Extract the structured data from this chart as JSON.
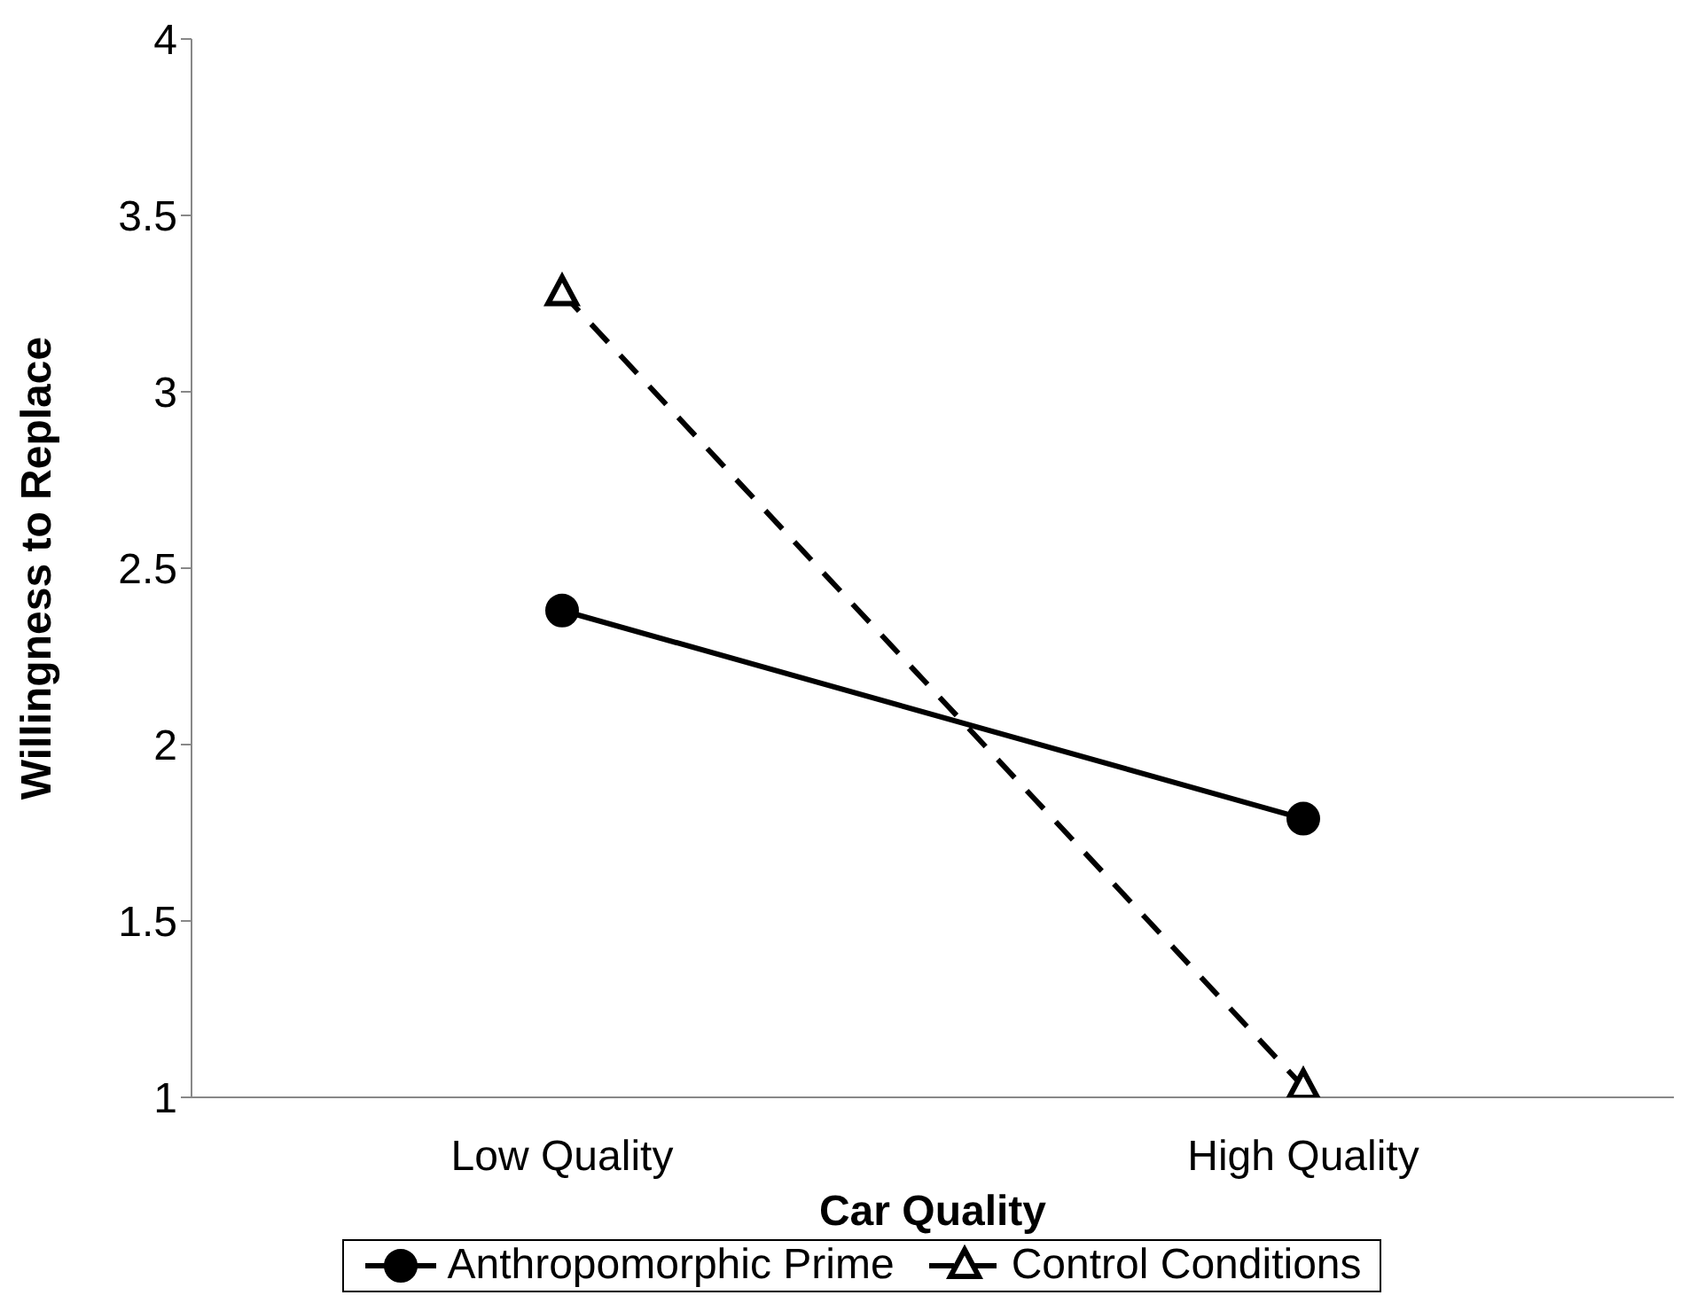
{
  "chart_data": {
    "type": "line",
    "xlabel": "Car Quality",
    "ylabel": "Willingness to Replace",
    "categories": [
      "Low Quality",
      "High Quality"
    ],
    "series": [
      {
        "name": "Anthropomorphic Prime",
        "color": "#000000",
        "values": [
          2.38,
          1.79
        ],
        "marker": "circle",
        "line_style": "solid"
      },
      {
        "name": "Control Conditions",
        "color": "#000000",
        "values": [
          3.28,
          1.03
        ],
        "marker": "triangle",
        "line_style": "dashed"
      }
    ],
    "ylim": [
      1,
      4
    ],
    "yticks": [
      1,
      1.5,
      2,
      2.5,
      3,
      3.5,
      4
    ],
    "grid": false,
    "legend": "bottom"
  }
}
